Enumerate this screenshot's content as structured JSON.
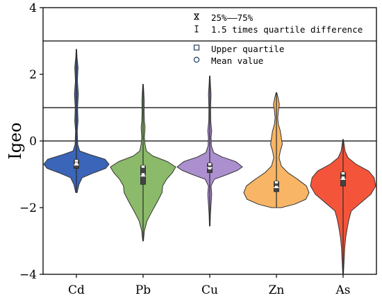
{
  "chart_data": {
    "type": "violin",
    "ylabel": "Igeo",
    "xlabel": "",
    "ylim": [
      -4,
      4
    ],
    "yticks": [
      4,
      2,
      0,
      -2,
      -4
    ],
    "yticks_text": [
      "4",
      "2",
      "0",
      "−2",
      "−4"
    ],
    "reference_lines": [
      3,
      1,
      0
    ],
    "categories": [
      "Cd",
      "Pb",
      "Cu",
      "Zn",
      "As"
    ],
    "colors": {
      "Cd": "#3a65b8",
      "Pb": "#8bba6a",
      "Cu": "#ab8fcf",
      "Zn": "#f8b565",
      "As": "#f4553a"
    },
    "series": [
      {
        "category": "Cd",
        "min": -1.55,
        "q1": -0.82,
        "median": -0.72,
        "mean": -0.68,
        "q3": -0.58,
        "max": 2.75,
        "density": [
          [
            -1.55,
            0.02
          ],
          [
            -1.3,
            0.08
          ],
          [
            -1.1,
            0.18
          ],
          [
            -0.95,
            0.55
          ],
          [
            -0.82,
            0.9
          ],
          [
            -0.7,
            1.0
          ],
          [
            -0.55,
            0.88
          ],
          [
            -0.42,
            0.45
          ],
          [
            -0.3,
            0.1
          ],
          [
            -0.1,
            0.04
          ],
          [
            0.3,
            0.025
          ],
          [
            0.6,
            0.05
          ],
          [
            1.0,
            0.035
          ],
          [
            1.4,
            0.06
          ],
          [
            1.8,
            0.03
          ],
          [
            2.2,
            0.05
          ],
          [
            2.5,
            0.02
          ],
          [
            2.75,
            0.008
          ]
        ]
      },
      {
        "category": "Pb",
        "min": -3.0,
        "q1": -1.3,
        "median": -1.05,
        "mean": -1.0,
        "q3": -0.75,
        "max": 1.7,
        "density": [
          [
            -3.0,
            0.01
          ],
          [
            -2.7,
            0.04
          ],
          [
            -2.4,
            0.12
          ],
          [
            -2.1,
            0.28
          ],
          [
            -1.8,
            0.45
          ],
          [
            -1.55,
            0.58
          ],
          [
            -1.35,
            0.6
          ],
          [
            -1.15,
            0.72
          ],
          [
            -0.95,
            0.9
          ],
          [
            -0.78,
            1.0
          ],
          [
            -0.62,
            0.75
          ],
          [
            -0.45,
            0.3
          ],
          [
            -0.3,
            0.1
          ],
          [
            -0.1,
            0.06
          ],
          [
            0.1,
            0.04
          ],
          [
            0.4,
            0.06
          ],
          [
            0.6,
            0.04
          ],
          [
            0.9,
            0.03
          ],
          [
            1.2,
            0.035
          ],
          [
            1.5,
            0.02
          ],
          [
            1.7,
            0.008
          ]
        ]
      },
      {
        "category": "Cu",
        "min": -2.55,
        "q1": -0.95,
        "median": -0.8,
        "mean": -0.82,
        "q3": -0.68,
        "max": 1.95,
        "density": [
          [
            -2.55,
            0.01
          ],
          [
            -2.2,
            0.02
          ],
          [
            -1.9,
            0.04
          ],
          [
            -1.6,
            0.06
          ],
          [
            -1.35,
            0.04
          ],
          [
            -1.15,
            0.14
          ],
          [
            -1.0,
            0.55
          ],
          [
            -0.88,
            0.85
          ],
          [
            -0.78,
            1.0
          ],
          [
            -0.62,
            0.8
          ],
          [
            -0.48,
            0.38
          ],
          [
            -0.35,
            0.12
          ],
          [
            -0.15,
            0.05
          ],
          [
            0.1,
            0.04
          ],
          [
            0.3,
            0.06
          ],
          [
            0.6,
            0.03
          ],
          [
            1.0,
            0.025
          ],
          [
            1.4,
            0.04
          ],
          [
            1.7,
            0.02
          ],
          [
            1.95,
            0.008
          ]
        ]
      },
      {
        "category": "Zn",
        "min": -2.0,
        "q1": -1.52,
        "median": -1.4,
        "mean": -1.38,
        "q3": -1.22,
        "max": 1.45,
        "density": [
          [
            -2.0,
            0.15
          ],
          [
            -1.9,
            0.55
          ],
          [
            -1.75,
            0.9
          ],
          [
            -1.55,
            1.0
          ],
          [
            -1.35,
            0.92
          ],
          [
            -1.15,
            0.65
          ],
          [
            -0.95,
            0.35
          ],
          [
            -0.75,
            0.15
          ],
          [
            -0.5,
            0.08
          ],
          [
            -0.3,
            0.12
          ],
          [
            -0.1,
            0.18
          ],
          [
            0.1,
            0.15
          ],
          [
            0.3,
            0.12
          ],
          [
            0.5,
            0.06
          ],
          [
            0.7,
            0.04
          ],
          [
            0.9,
            0.06
          ],
          [
            1.1,
            0.09
          ],
          [
            1.3,
            0.05
          ],
          [
            1.45,
            0.01
          ]
        ]
      },
      {
        "category": "As",
        "min": -4.0,
        "q1": -1.35,
        "median": -1.15,
        "mean": -1.1,
        "q3": -0.95,
        "max": 0.05,
        "density": [
          [
            -4.0,
            0.01
          ],
          [
            -3.6,
            0.03
          ],
          [
            -3.2,
            0.05
          ],
          [
            -2.9,
            0.08
          ],
          [
            -2.6,
            0.13
          ],
          [
            -2.35,
            0.18
          ],
          [
            -2.1,
            0.25
          ],
          [
            -1.85,
            0.55
          ],
          [
            -1.6,
            0.85
          ],
          [
            -1.35,
            1.0
          ],
          [
            -1.1,
            0.95
          ],
          [
            -0.9,
            0.78
          ],
          [
            -0.7,
            0.4
          ],
          [
            -0.5,
            0.15
          ],
          [
            -0.3,
            0.06
          ],
          [
            -0.1,
            0.03
          ],
          [
            0.05,
            0.005
          ]
        ]
      }
    ],
    "legend": {
      "position": "top-right",
      "items": [
        {
          "symbol": "iqr-glyph",
          "label": "25%——75%"
        },
        {
          "symbol": "whisker-glyph",
          "label": "1.5 times quartile difference"
        },
        {
          "symbol": "square-glyph",
          "label": "Upper quartile"
        },
        {
          "symbol": "circle-glyph",
          "label": "Mean value"
        }
      ]
    }
  }
}
